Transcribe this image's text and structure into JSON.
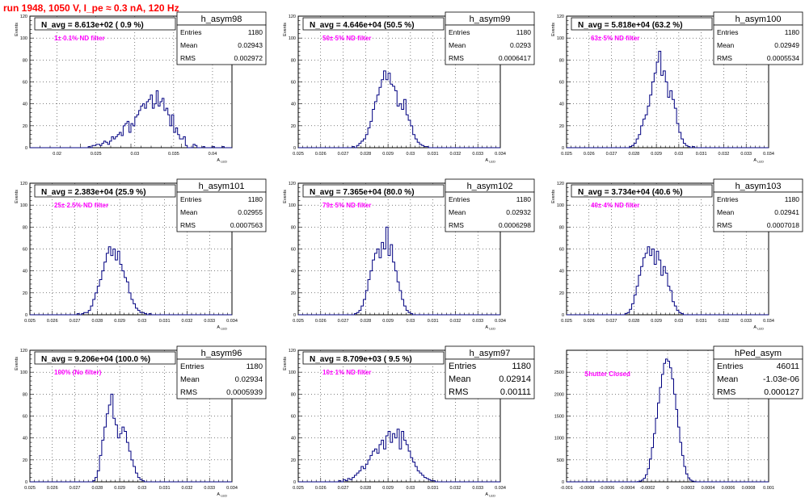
{
  "page": {
    "title": "run 1948,  1050 V, I_pe ≈ 0.3 nA, 120 Hz"
  },
  "style": {
    "hist_color": "#000080",
    "label_color": "#ff00ff",
    "title_color": "#ff0000"
  },
  "chart_data": [
    {
      "type": "bar",
      "name": "h_asym98",
      "title": "N_avg = 8.613e+02 ( 0.9 %)",
      "annotation": "1± 0.1% ND filter",
      "stats": {
        "Entries": "1180",
        "Mean": "0.02943",
        "RMS": "0.002972"
      },
      "ylabel": "Events",
      "xlabel": "A_LED",
      "xlim": [
        0.0165,
        0.0425
      ],
      "ylim": [
        0,
        120
      ],
      "xticks": [
        "0.02",
        "0.025",
        "0.03",
        "0.035",
        "0.04"
      ],
      "yticks": [
        "0",
        "20",
        "40",
        "60",
        "80",
        "100",
        "120"
      ],
      "bin_start": 0.0165,
      "bin_width": 0.00025,
      "values": [
        0,
        0,
        0,
        0,
        0,
        0,
        0,
        0,
        0,
        0,
        0,
        0,
        0,
        0,
        0,
        0,
        0,
        0,
        0,
        0,
        0,
        0,
        0,
        0,
        0,
        0,
        0,
        0,
        0,
        0,
        1,
        0,
        2,
        2,
        3,
        3,
        2,
        4,
        6,
        5,
        3,
        6,
        10,
        8,
        10,
        12,
        14,
        11,
        20,
        22,
        24,
        14,
        22,
        20,
        28,
        30,
        34,
        38,
        40,
        36,
        42,
        44,
        48,
        36,
        40,
        52,
        38,
        42,
        45,
        34,
        36,
        30,
        20,
        30,
        14,
        18,
        12,
        8,
        8,
        10,
        2,
        0,
        0,
        0,
        3,
        2,
        0,
        0,
        0,
        1,
        0,
        0,
        0,
        0,
        1,
        0,
        0,
        0,
        0,
        1,
        0,
        0,
        0,
        0
      ]
    },
    {
      "type": "bar",
      "name": "h_asym99",
      "title": "N_avg = 4.646e+04 (50.5 %)",
      "annotation": "50± 5% ND filter",
      "stats": {
        "Entries": "1180",
        "Mean": "0.0293",
        "RMS": "0.0006417"
      },
      "ylabel": "Events",
      "xlabel": "A_LED",
      "xlim": [
        0.025,
        0.034
      ],
      "ylim": [
        0,
        120
      ],
      "xticks": [
        "0.025",
        "0.026",
        "0.027",
        "0.028",
        "0.029",
        "0.03",
        "0.031",
        "0.032",
        "0.033",
        "0.034"
      ],
      "yticks": [
        "0",
        "20",
        "40",
        "60",
        "80",
        "100",
        "120"
      ],
      "bin_start": 0.025,
      "bin_width": 0.0001,
      "values": [
        0,
        0,
        0,
        0,
        0,
        0,
        0,
        0,
        0,
        0,
        0,
        0,
        0,
        0,
        0,
        0,
        0,
        0,
        0,
        0,
        0,
        0,
        0,
        0,
        1,
        0,
        2,
        4,
        6,
        8,
        12,
        18,
        24,
        35,
        42,
        48,
        55,
        62,
        70,
        62,
        68,
        58,
        56,
        52,
        38,
        40,
        35,
        44,
        30,
        25,
        20,
        12,
        8,
        5,
        3,
        2,
        1,
        1,
        0,
        0,
        0,
        0,
        0,
        0,
        0,
        0,
        0,
        0,
        0,
        0,
        0,
        0,
        0,
        0,
        0,
        0,
        0,
        0,
        0,
        0,
        0,
        0,
        0,
        0,
        0,
        0,
        0,
        0,
        0,
        0
      ]
    },
    {
      "type": "bar",
      "name": "h_asym100",
      "title": "N_avg = 5.818e+04 (63.2 %)",
      "annotation": "63± 5% ND filter",
      "stats": {
        "Entries": "1180",
        "Mean": "0.02949",
        "RMS": "0.0005534"
      },
      "ylabel": "Events",
      "xlabel": "A_LED",
      "xlim": [
        0.025,
        0.034
      ],
      "ylim": [
        0,
        120
      ],
      "xticks": [
        "0.025",
        "0.026",
        "0.027",
        "0.028",
        "0.029",
        "0.03",
        "0.031",
        "0.032",
        "0.033",
        "0.034"
      ],
      "yticks": [
        "0",
        "20",
        "40",
        "60",
        "80",
        "100",
        "120"
      ],
      "bin_start": 0.025,
      "bin_width": 0.0001,
      "values": [
        0,
        0,
        0,
        0,
        0,
        0,
        0,
        0,
        0,
        0,
        0,
        0,
        0,
        0,
        0,
        0,
        0,
        0,
        0,
        0,
        0,
        0,
        0,
        0,
        0,
        0,
        0,
        0,
        1,
        2,
        4,
        8,
        12,
        20,
        26,
        30,
        38,
        48,
        60,
        68,
        78,
        88,
        66,
        70,
        60,
        46,
        52,
        44,
        36,
        22,
        14,
        8,
        4,
        2,
        1,
        0,
        1,
        0,
        0,
        0,
        0,
        0,
        0,
        0,
        0,
        0,
        0,
        0,
        0,
        0,
        0,
        0,
        0,
        0,
        0,
        0,
        0,
        0,
        0,
        0,
        0,
        0,
        0,
        0,
        0,
        0,
        0,
        0,
        0,
        0
      ]
    },
    {
      "type": "bar",
      "name": "h_asym101",
      "title": "N_avg = 2.383e+04 (25.9 %)",
      "annotation": "25± 2.5% ND filter",
      "stats": {
        "Entries": "1180",
        "Mean": "0.02955",
        "RMS": "0.0007563"
      },
      "ylabel": "Events",
      "xlabel": "A_LED",
      "xlim": [
        0.025,
        0.034
      ],
      "ylim": [
        0,
        120
      ],
      "xticks": [
        "0.025",
        "0.026",
        "0.027",
        "0.028",
        "0.029",
        "0.03",
        "0.031",
        "0.032",
        "0.033",
        "0.034"
      ],
      "yticks": [
        "0",
        "20",
        "40",
        "60",
        "80",
        "100",
        "120"
      ],
      "bin_start": 0.025,
      "bin_width": 0.0001,
      "values": [
        0,
        0,
        0,
        0,
        0,
        0,
        0,
        0,
        0,
        0,
        0,
        0,
        0,
        0,
        0,
        0,
        0,
        0,
        0,
        0,
        0,
        1,
        0,
        1,
        2,
        2,
        4,
        8,
        14,
        20,
        26,
        32,
        40,
        48,
        56,
        62,
        54,
        60,
        50,
        58,
        46,
        40,
        34,
        30,
        20,
        14,
        10,
        6,
        4,
        2,
        2,
        1,
        0,
        1,
        0,
        0,
        0,
        0,
        0,
        0,
        0,
        0,
        0,
        0,
        0,
        0,
        0,
        0,
        0,
        0,
        0,
        0,
        0,
        0,
        0,
        0,
        0,
        0,
        0,
        0,
        0,
        0,
        0,
        0,
        0,
        0,
        0,
        0,
        0,
        0
      ]
    },
    {
      "type": "bar",
      "name": "h_asym102",
      "title": "N_avg = 7.365e+04 (80.0 %)",
      "annotation": "79± 5% ND filter",
      "stats": {
        "Entries": "1180",
        "Mean": "0.02932",
        "RMS": "0.0006298"
      },
      "ylabel": "Events",
      "xlabel": "A_LED",
      "xlim": [
        0.025,
        0.034
      ],
      "ylim": [
        0,
        120
      ],
      "xticks": [
        "0.025",
        "0.026",
        "0.027",
        "0.028",
        "0.029",
        "0.03",
        "0.031",
        "0.032",
        "0.033",
        "0.034"
      ],
      "yticks": [
        "0",
        "20",
        "40",
        "60",
        "80",
        "100",
        "120"
      ],
      "bin_start": 0.025,
      "bin_width": 0.0001,
      "values": [
        0,
        0,
        0,
        0,
        0,
        0,
        0,
        0,
        0,
        0,
        0,
        0,
        0,
        0,
        0,
        0,
        0,
        0,
        0,
        0,
        0,
        0,
        0,
        0,
        0,
        1,
        2,
        4,
        8,
        14,
        22,
        32,
        40,
        50,
        56,
        60,
        52,
        66,
        60,
        80,
        54,
        64,
        48,
        40,
        30,
        22,
        14,
        8,
        4,
        2,
        1,
        0,
        0,
        0,
        0,
        0,
        0,
        0,
        0,
        0,
        0,
        0,
        0,
        0,
        0,
        0,
        0,
        0,
        0,
        0,
        0,
        0,
        0,
        0,
        0,
        0,
        0,
        0,
        0,
        0,
        0,
        0,
        0,
        0,
        0,
        0,
        0,
        0,
        0,
        0
      ]
    },
    {
      "type": "bar",
      "name": "h_asym103",
      "title": "N_avg = 3.734e+04 (40.6 %)",
      "annotation": "40± 4% ND filter",
      "stats": {
        "Entries": "1180",
        "Mean": "0.02941",
        "RMS": "0.0007018"
      },
      "ylabel": "Events",
      "xlabel": "A_LED",
      "xlim": [
        0.025,
        0.034
      ],
      "ylim": [
        0,
        120
      ],
      "xticks": [
        "0.025",
        "0.026",
        "0.027",
        "0.028",
        "0.029",
        "0.03",
        "0.031",
        "0.032",
        "0.033",
        "0.034"
      ],
      "yticks": [
        "0",
        "20",
        "40",
        "60",
        "80",
        "100",
        "120"
      ],
      "bin_start": 0.025,
      "bin_width": 0.0001,
      "values": [
        0,
        0,
        0,
        0,
        0,
        0,
        0,
        0,
        0,
        0,
        0,
        0,
        0,
        0,
        0,
        0,
        0,
        0,
        0,
        0,
        0,
        0,
        0,
        0,
        0,
        0,
        1,
        2,
        5,
        10,
        18,
        26,
        36,
        44,
        52,
        56,
        62,
        54,
        60,
        46,
        58,
        50,
        36,
        44,
        38,
        26,
        22,
        12,
        8,
        4,
        2,
        1,
        0,
        0,
        0,
        0,
        0,
        0,
        0,
        0,
        0,
        0,
        0,
        0,
        0,
        0,
        0,
        0,
        0,
        0,
        0,
        0,
        0,
        0,
        0,
        0,
        0,
        0,
        0,
        0,
        0,
        0,
        0,
        0,
        0,
        0,
        0,
        0,
        0,
        0
      ]
    },
    {
      "type": "bar",
      "name": "h_asym96",
      "title": "N_avg = 9.206e+04 (100.0 %)",
      "annotation": "100% (No filter)",
      "stats": {
        "Entries": "1180",
        "Mean": "0.02934",
        "RMS": "0.0005939"
      },
      "ylabel": "Events",
      "xlabel": "A_LED",
      "xlim": [
        0.025,
        0.034
      ],
      "ylim": [
        0,
        120
      ],
      "xticks": [
        "0.025",
        "0.026",
        "0.027",
        "0.028",
        "0.029",
        "0.03",
        "0.031",
        "0.032",
        "0.033",
        "0.034"
      ],
      "yticks": [
        "0",
        "20",
        "40",
        "60",
        "80",
        "100",
        "120"
      ],
      "bin_start": 0.025,
      "bin_width": 0.0001,
      "values": [
        0,
        0,
        0,
        0,
        0,
        0,
        0,
        0,
        0,
        0,
        0,
        0,
        0,
        0,
        0,
        0,
        0,
        0,
        0,
        0,
        0,
        0,
        0,
        0,
        0,
        0,
        0,
        0,
        1,
        4,
        10,
        24,
        38,
        50,
        62,
        70,
        80,
        58,
        52,
        40,
        44,
        50,
        46,
        36,
        28,
        20,
        14,
        8,
        4,
        2,
        1,
        0,
        0,
        0,
        0,
        0,
        0,
        0,
        0,
        0,
        0,
        0,
        0,
        0,
        0,
        0,
        0,
        0,
        0,
        0,
        0,
        0,
        0,
        0,
        0,
        0,
        0,
        0,
        0,
        0,
        0,
        0,
        0,
        0,
        0,
        0,
        0,
        0,
        0,
        0
      ]
    },
    {
      "type": "bar",
      "name": "h_asym97",
      "title": "N_avg = 8.709e+03 ( 9.5 %)",
      "annotation": "10± 1% ND filter",
      "stats": {
        "Entries": "1180",
        "Mean": "0.02914",
        "RMS": "0.00111"
      },
      "ylabel": "Events",
      "xlabel": "A_LED",
      "xlim": [
        0.025,
        0.034
      ],
      "ylim": [
        0,
        120
      ],
      "xticks": [
        "0.025",
        "0.026",
        "0.027",
        "0.028",
        "0.029",
        "0.03",
        "0.031",
        "0.032",
        "0.033",
        "0.034"
      ],
      "yticks": [
        "0",
        "20",
        "40",
        "60",
        "80",
        "100",
        "120"
      ],
      "bin_start": 0.025,
      "bin_width": 0.0001,
      "values": [
        0,
        0,
        0,
        0,
        0,
        0,
        0,
        0,
        0,
        0,
        0,
        0,
        0,
        0,
        0,
        0,
        0,
        0,
        1,
        0,
        2,
        1,
        3,
        2,
        4,
        6,
        8,
        10,
        14,
        12,
        16,
        20,
        24,
        28,
        30,
        26,
        34,
        38,
        30,
        42,
        46,
        36,
        44,
        40,
        48,
        30,
        46,
        38,
        34,
        28,
        22,
        18,
        14,
        10,
        8,
        6,
        4,
        3,
        2,
        1,
        1,
        0,
        0,
        0,
        0,
        0,
        0,
        0,
        0,
        0,
        0,
        0,
        0,
        0,
        0,
        0,
        0,
        0,
        0,
        0,
        0,
        0,
        0,
        0,
        0,
        0,
        0,
        0,
        0,
        0
      ]
    },
    {
      "type": "bar",
      "name": "hPed_asym",
      "title": "",
      "annotation": "Shutter Closed",
      "stats": {
        "Entries": "46011",
        "Mean": "-1.03e-06",
        "RMS": "0.000127"
      },
      "ylabel": "",
      "xlabel": "",
      "xlim": [
        -0.001,
        0.001
      ],
      "ylim": [
        0,
        3000
      ],
      "xticks": [
        "-0.001",
        "-0.0008",
        "-0.0006",
        "-0.0004",
        "-0.0002",
        "0",
        "0.0002",
        "0.0004",
        "0.0006",
        "0.0008",
        "0.001"
      ],
      "yticks": [
        "0",
        "500",
        "1000",
        "1500",
        "2000",
        "2500"
      ],
      "bin_start": -0.001,
      "bin_width": 2e-05,
      "values": [
        0,
        0,
        0,
        0,
        0,
        0,
        0,
        0,
        0,
        0,
        0,
        0,
        0,
        0,
        0,
        0,
        0,
        0,
        0,
        0,
        0,
        0,
        0,
        0,
        0,
        0,
        0,
        0,
        0,
        0,
        0,
        0,
        0,
        0,
        0,
        5,
        15,
        40,
        80,
        160,
        300,
        520,
        780,
        1100,
        1450,
        1800,
        2150,
        2450,
        2700,
        2800,
        2750,
        2600,
        2350,
        2000,
        1650,
        1250,
        900,
        600,
        350,
        180,
        90,
        40,
        15,
        5,
        0,
        0,
        0,
        0,
        0,
        0,
        0,
        0,
        0,
        0,
        0,
        0,
        0,
        0,
        0,
        0,
        0,
        0,
        0,
        0,
        0,
        0,
        0,
        0,
        0,
        0,
        0,
        0,
        0,
        0,
        0,
        0,
        0,
        0,
        0,
        0
      ]
    }
  ]
}
